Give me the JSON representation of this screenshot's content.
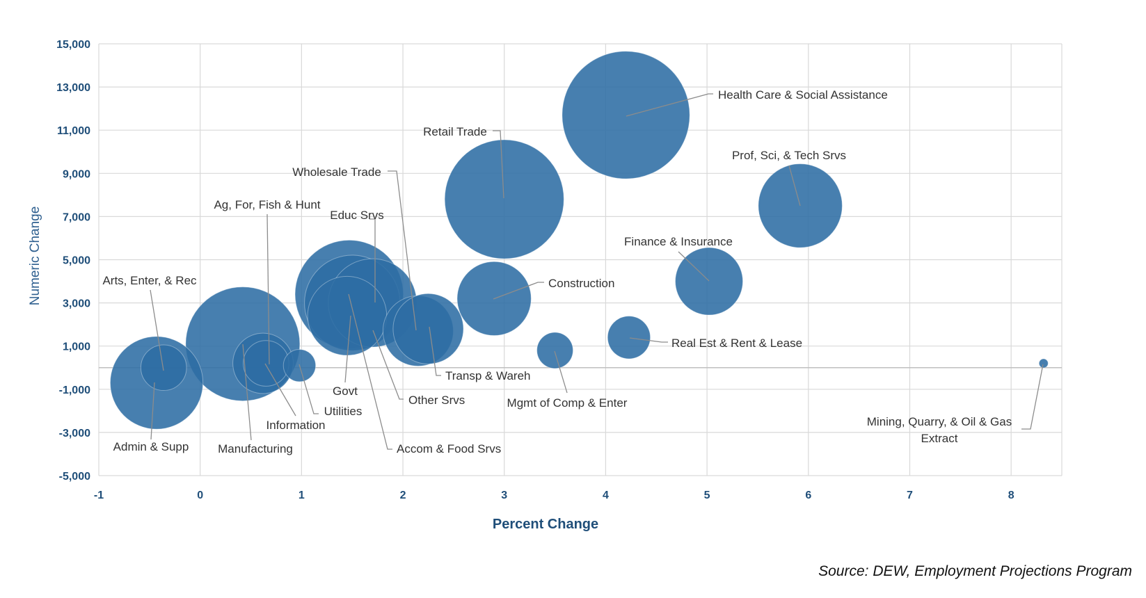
{
  "chart_data": {
    "type": "bubble",
    "xlabel": "Percent Change",
    "ylabel": "Numeric Change",
    "xlim": [
      -1,
      8.5
    ],
    "ylim": [
      -5000,
      15000
    ],
    "x_ticks": [
      "-1",
      "0",
      "1",
      "2",
      "3",
      "4",
      "5",
      "6",
      "7",
      "8"
    ],
    "y_ticks": [
      "-5,000",
      "-3,000",
      "-1,000",
      "1,000",
      "3,000",
      "5,000",
      "7,000",
      "9,000",
      "11,000",
      "13,000",
      "15,000"
    ],
    "bubble_color": "#2e6da4",
    "grid": true,
    "points": [
      {
        "label": "Admin & Supp",
        "x": -0.43,
        "y": -700,
        "size": 0.66
      },
      {
        "label": "Arts, Enter, & Rec",
        "x": -0.36,
        "y": 0,
        "size": 0.16
      },
      {
        "label": "Manufacturing",
        "x": 0.42,
        "y": 1100,
        "size": 1.0
      },
      {
        "label": "Ag, For, Fish & Hunt",
        "x": 0.65,
        "y": 200,
        "size": 0.16
      },
      {
        "label": "Information",
        "x": 0.62,
        "y": 200,
        "size": 0.28
      },
      {
        "label": "Utilities",
        "x": 0.98,
        "y": 100,
        "size": 0.08
      },
      {
        "label": "Educ Srvs",
        "x": 1.47,
        "y": 3400,
        "size": 0.9
      },
      {
        "label": "Govt",
        "x": 1.45,
        "y": 2400,
        "size": 0.48
      },
      {
        "label": "Accom & Food Srvs",
        "x": 1.5,
        "y": 3000,
        "size": 0.7
      },
      {
        "label": "Other Srvs",
        "x": 1.7,
        "y": 3000,
        "size": 0.6
      },
      {
        "label": "Wholesale Trade",
        "x": 2.15,
        "y": 1700,
        "size": 0.38
      },
      {
        "label": "Transp & Wareh",
        "x": 2.25,
        "y": 1800,
        "size": 0.38
      },
      {
        "label": "Construction",
        "x": 2.9,
        "y": 3200,
        "size": 0.42
      },
      {
        "label": "Retail Trade",
        "x": 3.0,
        "y": 7800,
        "size": 1.09
      },
      {
        "label": "Mgmt of Comp & Enter",
        "x": 3.5,
        "y": 800,
        "size": 0.1
      },
      {
        "label": "Health Care & Social Assistance",
        "x": 4.2,
        "y": 11700,
        "size": 1.25
      },
      {
        "label": "Real Est & Rent & Lease",
        "x": 4.23,
        "y": 1400,
        "size": 0.14
      },
      {
        "label": "Finance & Insurance",
        "x": 5.02,
        "y": 4000,
        "size": 0.35
      },
      {
        "label": "Prof, Sci, & Tech Srvs",
        "x": 5.92,
        "y": 7500,
        "size": 0.54
      },
      {
        "label": "Mining, Quarry, & Oil & Gas Extract",
        "x": 8.32,
        "y": 200,
        "size": 0.002
      }
    ]
  },
  "source": "Source: DEW, Employment Projections Program"
}
